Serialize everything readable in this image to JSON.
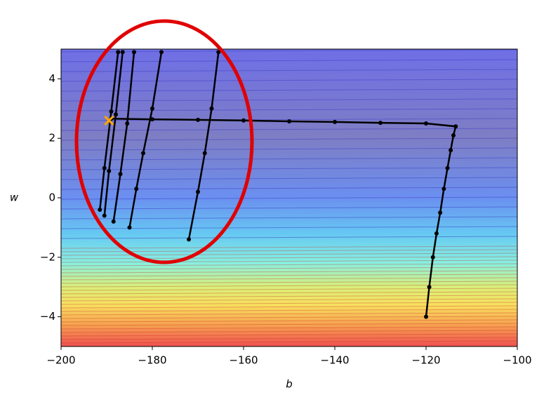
{
  "chart_data": {
    "type": "line",
    "x_label": "b",
    "y_label": "w",
    "x": [
      -120,
      -119.3,
      -118.5,
      -117.7,
      -116.9,
      -116.1,
      -115.3,
      -114.6,
      -114,
      -113.5,
      -120,
      -130,
      -140,
      -150,
      -160,
      -170,
      -180,
      -189,
      null,
      -165.5,
      -167,
      -168.5,
      -170,
      -172,
      null,
      -178,
      -180,
      -182,
      -183.5,
      -185,
      null,
      -184,
      -185.5,
      -187,
      -188.5,
      null,
      -186.5,
      -188,
      -189.5,
      -190.5,
      null,
      -187.5,
      -189,
      -190.5,
      -191.5
    ],
    "values": [
      -4,
      -3,
      -2,
      -1.2,
      -0.5,
      0.3,
      1,
      1.6,
      2.1,
      2.4,
      2.5,
      2.52,
      2.55,
      2.57,
      2.6,
      2.62,
      2.64,
      2.66,
      null,
      4.9,
      3,
      1.5,
      0.2,
      -1.4,
      null,
      4.9,
      3,
      1.5,
      0.3,
      -1.0,
      null,
      4.9,
      2.5,
      0.8,
      -0.8,
      null,
      4.9,
      2.8,
      0.9,
      -0.6,
      null,
      4.9,
      2.9,
      1.0,
      -0.4
    ],
    "color": "#000000",
    "target": {
      "x": -189.5,
      "y": 2.6,
      "color": "#ffa500"
    },
    "xlim": [
      -200,
      -100
    ],
    "ylim": [
      -5,
      5
    ],
    "xticks": [
      {
        "value": -200,
        "label": "−200"
      },
      {
        "value": -180,
        "label": "−180"
      },
      {
        "value": -160,
        "label": "−160"
      },
      {
        "value": -140,
        "label": "−140"
      },
      {
        "value": -120,
        "label": "−120"
      },
      {
        "value": -100,
        "label": "−100"
      }
    ],
    "yticks": [
      {
        "value": -4,
        "label": "−4"
      },
      {
        "value": -2,
        "label": "−2"
      },
      0,
      2,
      4
    ]
  }
}
